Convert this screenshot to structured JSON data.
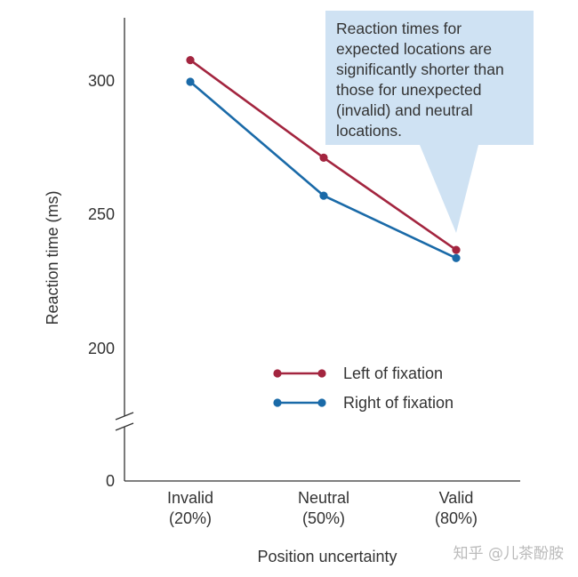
{
  "chart_data": {
    "type": "line",
    "categories": [
      "Invalid\n(20%)",
      "Neutral\n(50%)",
      "Valid\n(80%)"
    ],
    "series": [
      {
        "name": "Left of fixation",
        "values": [
          308,
          272,
          238
        ],
        "color": "#a3253f"
      },
      {
        "name": "Right of fixation",
        "values": [
          300,
          258,
          235
        ],
        "color": "#1a6aa8"
      }
    ],
    "xlabel": "Position uncertainty",
    "ylabel": "Reaction time (ms)",
    "ylim": [
      0,
      320
    ],
    "axis_break": true,
    "y_ticks": [
      0,
      200,
      250,
      300
    ],
    "grid": false,
    "legend_position": "bottom-right",
    "annotation": {
      "lines": [
        "Reaction times for",
        "expected locations are",
        "significantly shorter than",
        "those for unexpected",
        "(invalid) and neutral",
        "locations."
      ],
      "points_to": "Valid",
      "background": "#cfe2f3"
    }
  },
  "watermark": "知乎 @儿茶酚胺"
}
